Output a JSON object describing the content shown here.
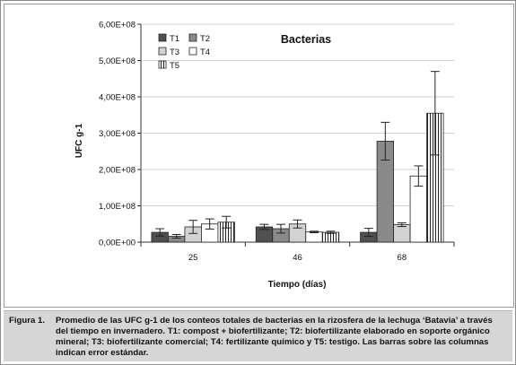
{
  "chart_data": {
    "type": "bar",
    "title": "Bacterias",
    "xlabel": "Tiempo (días)",
    "ylabel": "UFC g-1",
    "ylim": [
      0,
      600000000
    ],
    "yticks": [
      {
        "value": 0,
        "label": "0,00E+00"
      },
      {
        "value": 100000000,
        "label": "1,00E+08"
      },
      {
        "value": 200000000,
        "label": "2,00E+08"
      },
      {
        "value": 300000000,
        "label": "3,00E+08"
      },
      {
        "value": 400000000,
        "label": "4,00E+08"
      },
      {
        "value": 500000000,
        "label": "5,00E+08"
      },
      {
        "value": 600000000,
        "label": "6,00E+08"
      }
    ],
    "categories": [
      "25",
      "46",
      "68"
    ],
    "legend_position": "top-left",
    "series": [
      {
        "name": "T1",
        "color": "#505050",
        "pattern": "solid",
        "values": [
          27000000,
          42000000,
          27000000
        ],
        "errors": [
          10000000,
          7000000,
          11000000
        ]
      },
      {
        "name": "T2",
        "color": "#8a8a8a",
        "pattern": "solid",
        "values": [
          16000000,
          37000000,
          278000000
        ],
        "errors": [
          5000000,
          12000000,
          52000000
        ]
      },
      {
        "name": "T3",
        "color": "#d2d2d2",
        "pattern": "solid",
        "values": [
          42000000,
          50000000,
          48000000
        ],
        "errors": [
          18000000,
          11000000,
          5000000
        ]
      },
      {
        "name": "T4",
        "color": "#ffffff",
        "pattern": "solid",
        "values": [
          50000000,
          28000000,
          182000000
        ],
        "errors": [
          14000000,
          2000000,
          28000000
        ]
      },
      {
        "name": "T5",
        "color": "#ffffff",
        "pattern": "vertical-stripes",
        "values": [
          55000000,
          27000000,
          355000000
        ],
        "errors": [
          16000000,
          3000000,
          115000000
        ]
      }
    ]
  },
  "caption": {
    "label": "Figura 1.",
    "text": "Promedio de las UFC g-1 de los conteos totales de bacterias en la rizosfera de la lechuga ‘Batavia’ a través del tiempo en invernadero. T1: compost + biofertilizante; T2: biofertilizante elaborado en soporte orgánico mineral; T3: biofertilizante comercial; T4: fertilizante químico y T5: testigo. Las barras sobre las columnas indican error estándar."
  }
}
